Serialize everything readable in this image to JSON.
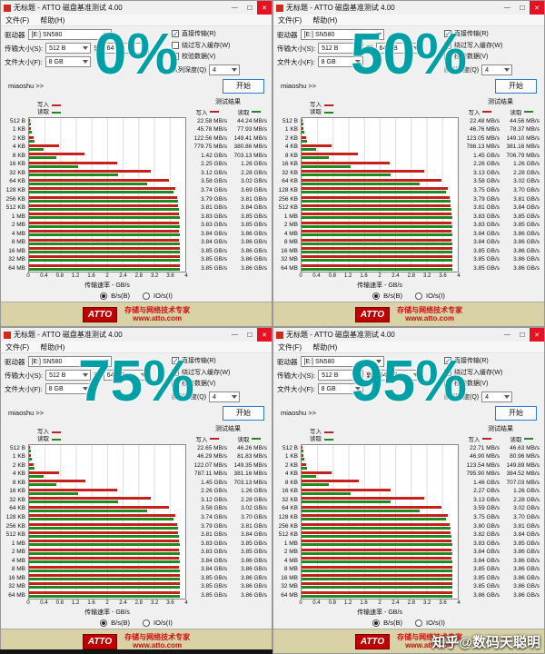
{
  "watermark": "知乎@数码天聪明",
  "colors": {
    "write": "#c6201c",
    "read": "#1f8a1f",
    "percent": "#00a0a6",
    "footer_bg": "#d8d2a6",
    "footer_text": "#cc1111"
  },
  "app": {
    "title": "无标题 - ATTO 磁盘基准测试 4.00",
    "window_controls": {
      "minimize": "—",
      "maximize": "☐",
      "close": "✕"
    },
    "menu_file": "文件(F)",
    "menu_help": "帮助(H)",
    "drive_label": "驱动器",
    "drive_value": "[E:] SN580",
    "direct_io": "直接传输(R)",
    "bypass_cache": "绕过写入缓存(W)",
    "verify_data": "校验数据(V)",
    "queue_depth_label": "队列深度(Q)",
    "queue_depth_value": "4",
    "transfer_size_label": "传输大小(S):",
    "transfer_size_from": "512 B",
    "to_label": "到",
    "transfer_size_to": "64 MB",
    "file_size_label": "文件大小(F):",
    "file_size_value": "8 GB",
    "miaoshu": "miaoshu >>",
    "start": "开始",
    "results_title": "测试结果",
    "write_label": "写入",
    "read_label": "读取",
    "axis_label": "传输速率 - GB/s",
    "radio_bs": "B/s(B)",
    "radio_ios": "IO/s(I)",
    "logo": "ATTO",
    "footer_line1": "存储与网络技术专家",
    "footer_line2": "www.atto.com",
    "axis_max_gbps": 4,
    "xticks": [
      "0",
      "0.4",
      "0.8",
      "1.2",
      "1.6",
      "2",
      "2.4",
      "2.8",
      "3.2",
      "3.6",
      "4"
    ],
    "sizes": [
      "512 B",
      "1 KB",
      "2 KB",
      "4 KB",
      "8 KB",
      "16 KB",
      "32 KB",
      "64 KB",
      "128 KB",
      "256 KB",
      "512 KB",
      "1 MB",
      "2 MB",
      "4 MB",
      "8 MB",
      "16 MB",
      "32 MB",
      "64 MB"
    ]
  },
  "windows": [
    {
      "percent": "0%",
      "write": [
        "22.58 MB/s",
        "45.78 MB/s",
        "122.56 MB/s",
        "779.75 MB/s",
        "1.42 GB/s",
        "2.25 GB/s",
        "3.12 GB/s",
        "3.58 GB/s",
        "3.74 GB/s",
        "3.79 GB/s",
        "3.81 GB/s",
        "3.83 GB/s",
        "3.83 GB/s",
        "3.84 GB/s",
        "3.84 GB/s",
        "3.85 GB/s",
        "3.85 GB/s",
        "3.85 GB/s"
      ],
      "read": [
        "44.24 MB/s",
        "77.93 MB/s",
        "149.41 MB/s",
        "380.86 MB/s",
        "703.13 MB/s",
        "1.26 GB/s",
        "2.28 GB/s",
        "3.02 GB/s",
        "3.69 GB/s",
        "3.81 GB/s",
        "3.84 GB/s",
        "3.85 GB/s",
        "3.85 GB/s",
        "3.86 GB/s",
        "3.86 GB/s",
        "3.86 GB/s",
        "3.86 GB/s",
        "3.86 GB/s"
      ]
    },
    {
      "percent": "50%",
      "write": [
        "22.48 MB/s",
        "46.76 MB/s",
        "123.05 MB/s",
        "786.13 MB/s",
        "1.45 GB/s",
        "2.26 GB/s",
        "3.13 GB/s",
        "3.58 GB/s",
        "3.75 GB/s",
        "3.79 GB/s",
        "3.81 GB/s",
        "3.83 GB/s",
        "3.83 GB/s",
        "3.84 GB/s",
        "3.84 GB/s",
        "3.85 GB/s",
        "3.85 GB/s",
        "3.85 GB/s"
      ],
      "read": [
        "44.56 MB/s",
        "78.37 MB/s",
        "149.10 MB/s",
        "381.16 MB/s",
        "706.79 MB/s",
        "1.26 GB/s",
        "2.28 GB/s",
        "3.02 GB/s",
        "3.70 GB/s",
        "3.81 GB/s",
        "3.84 GB/s",
        "3.85 GB/s",
        "3.85 GB/s",
        "3.86 GB/s",
        "3.86 GB/s",
        "3.86 GB/s",
        "3.86 GB/s",
        "3.86 GB/s"
      ]
    },
    {
      "percent": "75%",
      "write": [
        "22.65 MB/s",
        "46.29 MB/s",
        "122.07 MB/s",
        "787.11 MB/s",
        "1.45 GB/s",
        "2.26 GB/s",
        "3.12 GB/s",
        "3.58 GB/s",
        "3.74 GB/s",
        "3.79 GB/s",
        "3.81 GB/s",
        "3.83 GB/s",
        "3.83 GB/s",
        "3.84 GB/s",
        "3.84 GB/s",
        "3.85 GB/s",
        "3.85 GB/s",
        "3.85 GB/s"
      ],
      "read": [
        "46.26 MB/s",
        "81.83 MB/s",
        "149.35 MB/s",
        "381.16 MB/s",
        "703.13 MB/s",
        "1.26 GB/s",
        "2.28 GB/s",
        "3.02 GB/s",
        "3.70 GB/s",
        "3.81 GB/s",
        "3.84 GB/s",
        "3.85 GB/s",
        "3.85 GB/s",
        "3.86 GB/s",
        "3.86 GB/s",
        "3.86 GB/s",
        "3.86 GB/s",
        "3.86 GB/s"
      ]
    },
    {
      "percent": "95%",
      "write": [
        "22.71 MB/s",
        "46.90 MB/s",
        "123.54 MB/s",
        "795.90 MB/s",
        "1.46 GB/s",
        "2.27 GB/s",
        "3.13 GB/s",
        "3.59 GB/s",
        "3.75 GB/s",
        "3.80 GB/s",
        "3.82 GB/s",
        "3.83 GB/s",
        "3.84 GB/s",
        "3.84 GB/s",
        "3.85 GB/s",
        "3.85 GB/s",
        "3.85 GB/s",
        "3.86 GB/s"
      ],
      "read": [
        "46.63 MB/s",
        "80.96 MB/s",
        "149.89 MB/s",
        "384.52 MB/s",
        "707.03 MB/s",
        "1.26 GB/s",
        "2.28 GB/s",
        "3.02 GB/s",
        "3.70 GB/s",
        "3.81 GB/s",
        "3.84 GB/s",
        "3.85 GB/s",
        "3.86 GB/s",
        "3.86 GB/s",
        "3.86 GB/s",
        "3.86 GB/s",
        "3.86 GB/s",
        "3.86 GB/s"
      ]
    }
  ]
}
